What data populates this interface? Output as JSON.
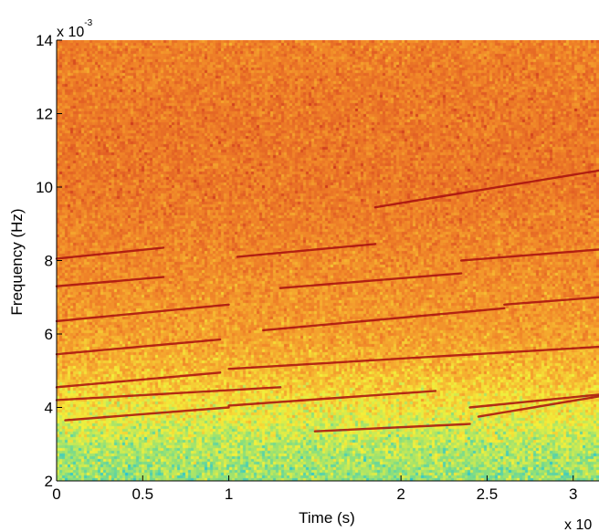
{
  "chart_data": {
    "type": "heatmap",
    "xlabel": "Time (s)",
    "ylabel": "Frequency (Hz)",
    "xlim": [
      0,
      3.15
    ],
    "ylim": [
      2,
      14
    ],
    "x_ticks": [
      {
        "value": 0,
        "label": "0"
      },
      {
        "value": 0.5,
        "label": "0.5"
      },
      {
        "value": 1,
        "label": "1"
      },
      {
        "value": 2,
        "label": "2"
      },
      {
        "value": 2.5,
        "label": "2.5"
      },
      {
        "value": 3,
        "label": "3"
      }
    ],
    "y_ticks": [
      {
        "value": 2,
        "label": "2"
      },
      {
        "value": 4,
        "label": "4"
      },
      {
        "value": 6,
        "label": "6"
      },
      {
        "value": 8,
        "label": "8"
      },
      {
        "value": 10,
        "label": "10"
      },
      {
        "value": 12,
        "label": "12"
      },
      {
        "value": 14,
        "label": "14"
      }
    ],
    "y_exponent": {
      "base": "x 10",
      "power": "-3"
    },
    "x_exponent": {
      "base": "x 10",
      "power": ""
    },
    "grid": false,
    "colormap": [
      "#22c4d8",
      "#8ee07a",
      "#f4f03a",
      "#f6b030",
      "#f08428",
      "#e25e24",
      "#b81414"
    ],
    "intensity_profile": {
      "frequency": [
        2,
        3,
        4,
        5,
        6,
        8,
        10,
        12,
        14
      ],
      "mean_level": [
        0.18,
        0.24,
        0.36,
        0.48,
        0.57,
        0.65,
        0.72,
        0.72,
        0.68
      ]
    },
    "tracks": [
      {
        "x": [
          0.0,
          0.62
        ],
        "y": [
          8.05,
          8.35
        ]
      },
      {
        "x": [
          1.05,
          1.85
        ],
        "y": [
          8.1,
          8.45
        ]
      },
      {
        "x": [
          1.85,
          3.15
        ],
        "y": [
          9.45,
          10.45
        ]
      },
      {
        "x": [
          0.0,
          0.62
        ],
        "y": [
          7.3,
          7.55
        ]
      },
      {
        "x": [
          1.3,
          2.35
        ],
        "y": [
          7.25,
          7.65
        ]
      },
      {
        "x": [
          2.35,
          3.15
        ],
        "y": [
          8.0,
          8.3
        ]
      },
      {
        "x": [
          0.0,
          1.0
        ],
        "y": [
          6.35,
          6.8
        ]
      },
      {
        "x": [
          1.2,
          2.6
        ],
        "y": [
          6.1,
          6.7
        ]
      },
      {
        "x": [
          2.6,
          3.15
        ],
        "y": [
          6.8,
          7.0
        ]
      },
      {
        "x": [
          0.0,
          0.95
        ],
        "y": [
          5.45,
          5.85
        ]
      },
      {
        "x": [
          1.0,
          3.15
        ],
        "y": [
          5.05,
          5.65
        ]
      },
      {
        "x": [
          0.0,
          0.95
        ],
        "y": [
          4.55,
          4.95
        ]
      },
      {
        "x": [
          0.0,
          1.3
        ],
        "y": [
          4.2,
          4.55
        ]
      },
      {
        "x": [
          1.0,
          2.2
        ],
        "y": [
          4.05,
          4.45
        ]
      },
      {
        "x": [
          2.4,
          3.15
        ],
        "y": [
          4.0,
          4.35
        ]
      },
      {
        "x": [
          0.05,
          1.0
        ],
        "y": [
          3.65,
          4.0
        ]
      },
      {
        "x": [
          1.5,
          2.4
        ],
        "y": [
          3.35,
          3.55
        ]
      },
      {
        "x": [
          2.45,
          3.15
        ],
        "y": [
          3.75,
          4.3
        ]
      }
    ]
  }
}
